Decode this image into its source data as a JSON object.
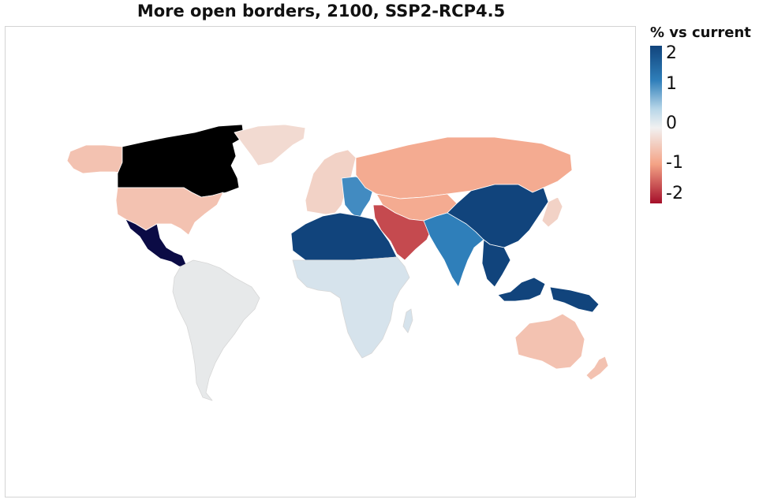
{
  "title": "More open borders, 2100, SSP2-RCP4.5",
  "legend": {
    "title": "% vs current",
    "colors": {
      "top": "#11447c",
      "upper": "#2f7fba",
      "mid_high": "#b7d6e8",
      "mid": "#f1f1f1",
      "low": "#f4a386",
      "bottom": "#a50f2a"
    },
    "ticks": [
      "2",
      "1",
      "0",
      "-1",
      "-2"
    ]
  },
  "map": {
    "scale_min": -2,
    "scale_max": 2,
    "regions": [
      {
        "name": "Canada",
        "value": null,
        "color": "#000000"
      },
      {
        "name": "United States",
        "value": -0.6
      },
      {
        "name": "Mexico and Central America",
        "value": 3.0,
        "color": "#0b0b45"
      },
      {
        "name": "Greenland",
        "value": -0.3
      },
      {
        "name": "Alaska",
        "value": -0.6
      },
      {
        "name": "South America",
        "value": 0.0
      },
      {
        "name": "Western Europe",
        "value": -0.4
      },
      {
        "name": "Central Europe",
        "value": 1.3
      },
      {
        "name": "Russia",
        "value": -0.9
      },
      {
        "name": "North Africa",
        "value": 2.0
      },
      {
        "name": "Sub-Saharan Africa",
        "value": 0.35
      },
      {
        "name": "Middle East",
        "value": -1.6
      },
      {
        "name": "Central Asia",
        "value": -0.9
      },
      {
        "name": "South Asia",
        "value": 1.4
      },
      {
        "name": "China",
        "value": 2.0
      },
      {
        "name": "Southeast Asia",
        "value": 2.0
      },
      {
        "name": "Japan",
        "value": -0.4
      },
      {
        "name": "Australia",
        "value": -0.6
      },
      {
        "name": "New Zealand",
        "value": -0.6
      }
    ]
  }
}
